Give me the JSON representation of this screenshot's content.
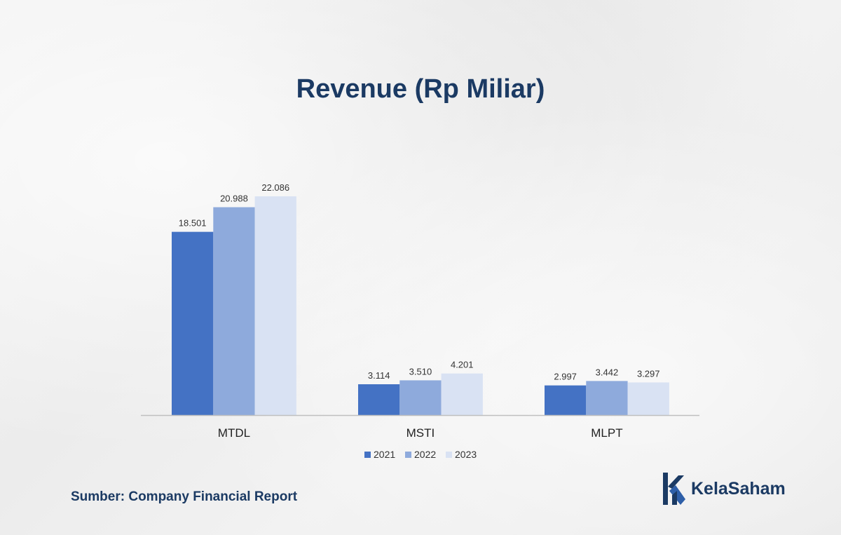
{
  "chart_data": {
    "type": "bar",
    "title": "Revenue (Rp Miliar)",
    "categories": [
      "MTDL",
      "MSTI",
      "MLPT"
    ],
    "series": [
      {
        "name": "2021",
        "values": [
          18501,
          3114,
          2997
        ],
        "labels": [
          "18.501",
          "3.114",
          "2.997"
        ],
        "color": "#4472c4"
      },
      {
        "name": "2022",
        "values": [
          20988,
          3510,
          3442
        ],
        "labels": [
          "20.988",
          "3.510",
          "3.442"
        ],
        "color": "#8eaadc"
      },
      {
        "name": "2023",
        "values": [
          22086,
          4201,
          3297
        ],
        "labels": [
          "22.086",
          "4.201",
          "3.297"
        ],
        "color": "#d9e2f3"
      }
    ],
    "legend": "bottom",
    "grid": false
  },
  "footer": {
    "source": "Sumber: Company Financial Report",
    "brand": "KelaSaham"
  },
  "colors": {
    "title": "#1b3a63",
    "axis": "#bfbfbf"
  }
}
